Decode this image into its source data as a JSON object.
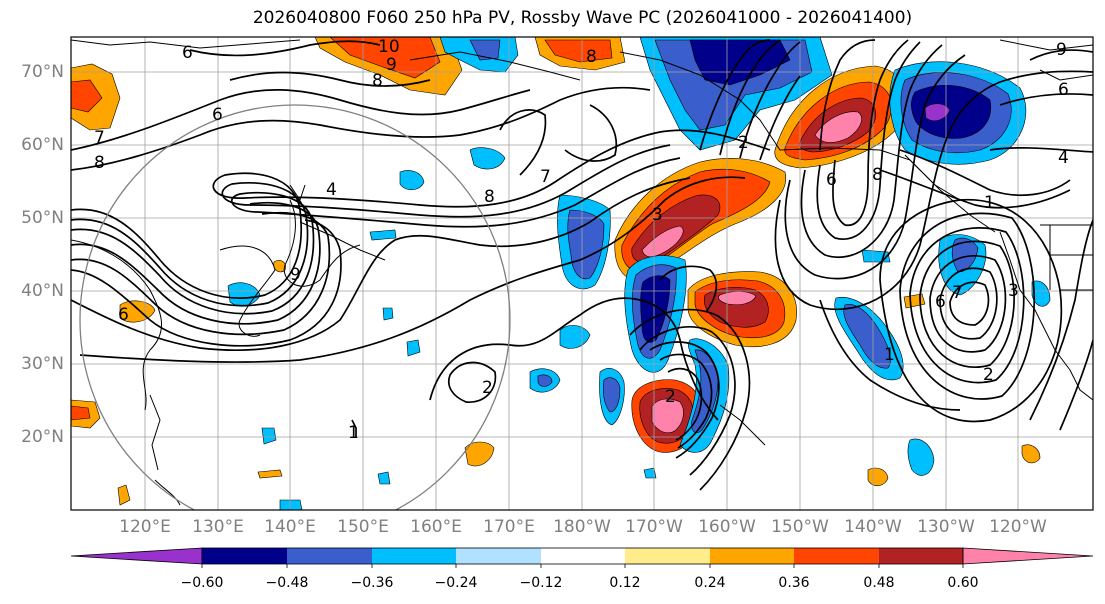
{
  "title": "2026040800 F060 250 hPa PV, Rossby Wave PC (2026041000 - 2026041400)",
  "lat_labels": [
    "70°N",
    "60°N",
    "50°N",
    "40°N",
    "30°N",
    "20°N"
  ],
  "lon_labels": [
    "120°E",
    "130°E",
    "140°E",
    "150°E",
    "160°E",
    "170°E",
    "180°W",
    "170°W",
    "160°W",
    "150°W",
    "140°W",
    "130°W",
    "120°W"
  ],
  "colorbar": {
    "ticks": [
      "−0.60",
      "−0.48",
      "−0.36",
      "−0.24",
      "−0.12",
      "0.12",
      "0.24",
      "0.36",
      "0.48",
      "0.60"
    ],
    "colors": [
      "#9932cc",
      "#00008b",
      "#3a5fcd",
      "#00bfff",
      "#b0e2ff",
      "#ffffff",
      "#ffec8b",
      "#ffa500",
      "#ff4500",
      "#b22222",
      "#ff82ab"
    ]
  },
  "contour_labels": [
    "6",
    "10",
    "9",
    "8",
    "8",
    "6",
    "7",
    "8",
    "4",
    "8",
    "7",
    "3",
    "2",
    "6",
    "8",
    "9",
    "6",
    "4",
    "1",
    "7",
    "6",
    "3",
    "2",
    "1",
    "2",
    "2",
    "1",
    "6",
    "9"
  ]
}
